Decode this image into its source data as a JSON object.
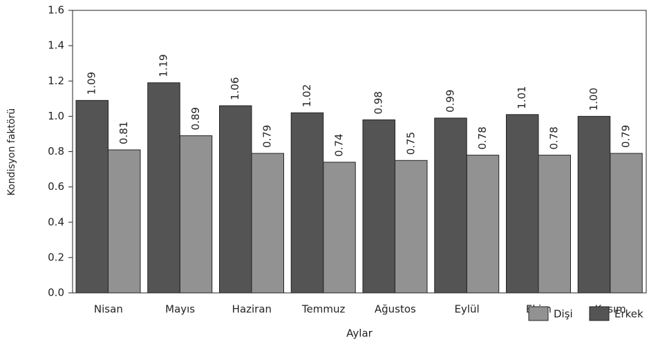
{
  "chart_data": {
    "type": "bar",
    "x_label": "Aylar",
    "y_label": "Kondisyon faktörü",
    "categories": [
      "Nisan",
      "Mayıs",
      "Haziran",
      "Temmuz",
      "Ağustos",
      "Eylül",
      "Ekim",
      "Kasım"
    ],
    "series": [
      {
        "name": "Dişi",
        "color": "#929292",
        "values": [
          0.81,
          0.89,
          0.79,
          0.74,
          0.75,
          0.78,
          0.78,
          0.79
        ],
        "value_labels": [
          "0.81",
          "0.89",
          "0.79",
          "0.74",
          "0.75",
          "0.78",
          "0.78",
          "0.79"
        ]
      },
      {
        "name": "Erkek",
        "color": "#545454",
        "values": [
          1.09,
          1.19,
          1.06,
          1.02,
          0.98,
          0.99,
          1.01,
          1.0
        ],
        "value_labels": [
          "1.09",
          "1.19",
          "1.06",
          "1.02",
          "0.98",
          "0.99",
          "1.01",
          "1.00"
        ]
      }
    ],
    "ylim": [
      0,
      1.6
    ],
    "yticks": [
      {
        "value": 0,
        "label": "0.0"
      },
      {
        "value": 0.2,
        "label": "0.2"
      },
      {
        "value": 0.4,
        "label": "0.4"
      },
      {
        "value": 0.6,
        "label": "0.6"
      },
      {
        "value": 0.8,
        "label": "0.8"
      },
      {
        "value": 1.0,
        "label": "1.0"
      },
      {
        "value": 1.2,
        "label": "1.2"
      },
      {
        "value": 1.4,
        "label": "1.4"
      },
      {
        "value": 1.6,
        "label": "1.6"
      }
    ],
    "legend": "bottom-right"
  }
}
